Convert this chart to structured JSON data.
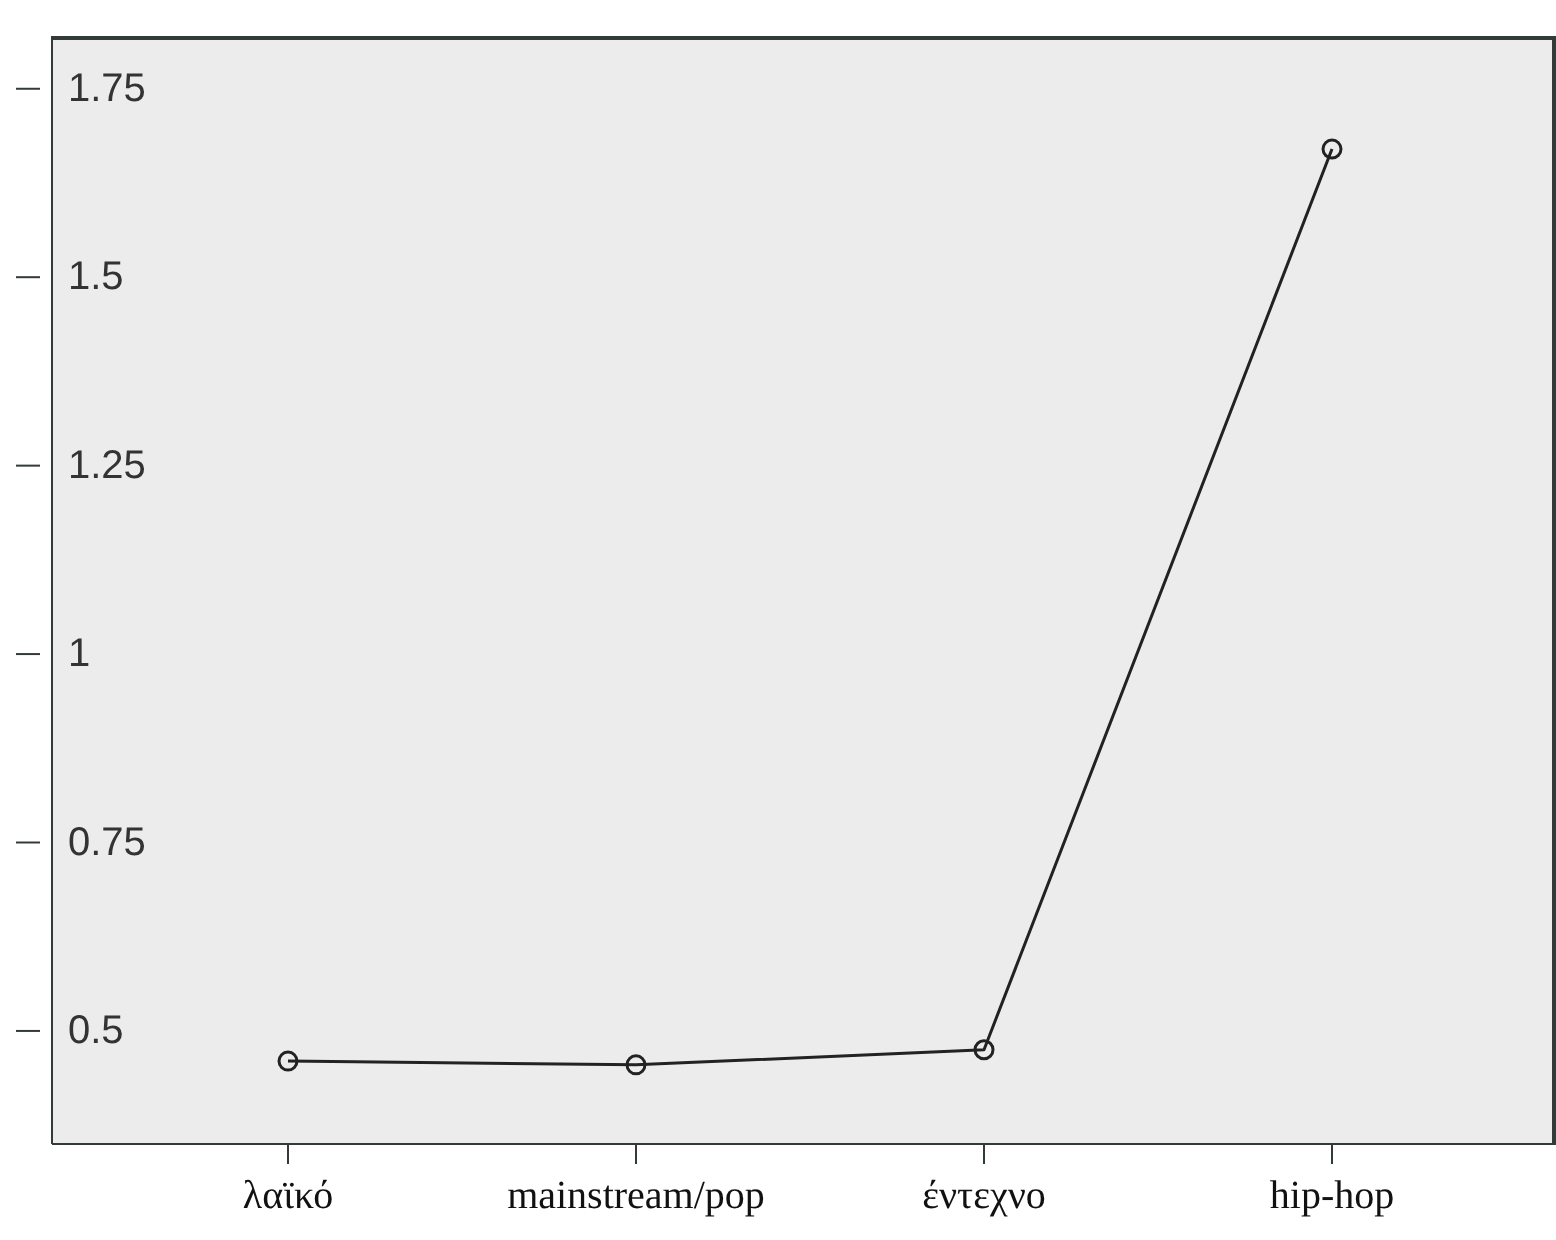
{
  "chart_data": {
    "type": "line",
    "categories": [
      "λαϊκό",
      "mainstream/pop",
      "έντεχνο",
      "hip-hop"
    ],
    "values": [
      0.46,
      0.455,
      0.475,
      1.67
    ],
    "color": "#222222",
    "marker": "circle",
    "line_style": "solid",
    "ylim": [
      0.35,
      1.82
    ],
    "yticks": [
      0.5,
      0.75,
      1,
      1.25,
      1.5,
      1.75
    ],
    "grid": false
  }
}
